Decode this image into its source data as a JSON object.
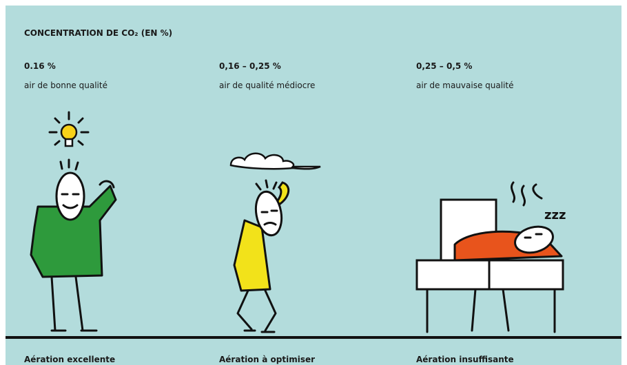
{
  "header": {
    "title": "CONCENTRATION DE CO₂ (EN %)"
  },
  "columns": [
    {
      "range": "0.16 %",
      "description": "air de bonne qualité",
      "verdict": "Aération excellente"
    },
    {
      "range": "0,16 – 0,25 %",
      "description": "air de qualité médiocre",
      "verdict": "Aération à optimiser"
    },
    {
      "range": "0,25 – 0,5 %",
      "description": "air de mauvaise qualité",
      "verdict": "Aération insuffisante"
    }
  ],
  "illustration": {
    "sleep_text": "zzz"
  }
}
